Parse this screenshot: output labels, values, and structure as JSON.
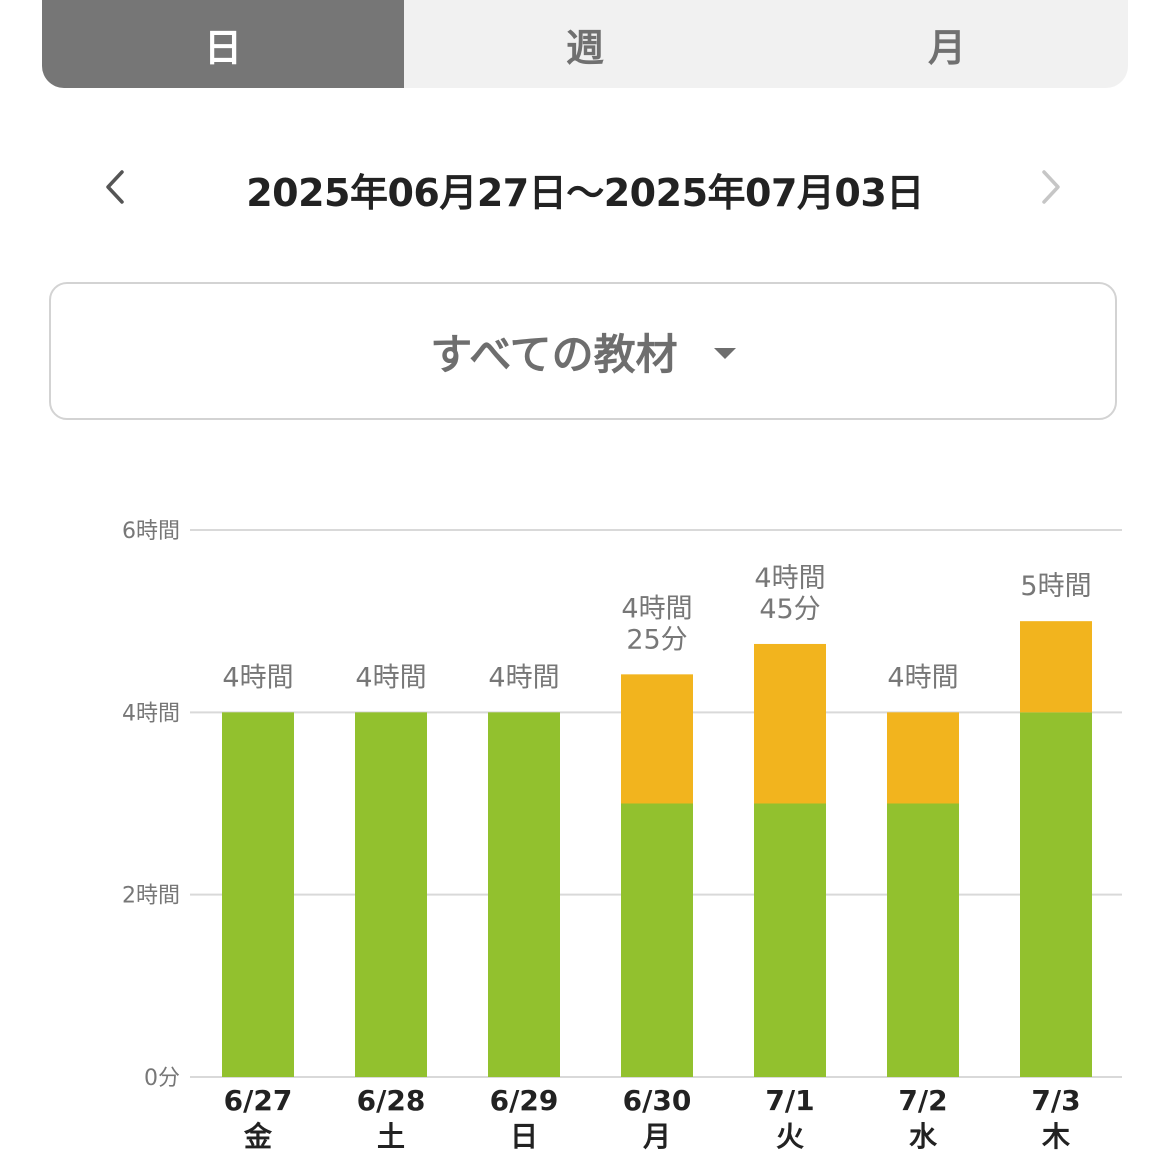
{
  "tabs": [
    {
      "label": "日",
      "active": true
    },
    {
      "label": "週",
      "active": false
    },
    {
      "label": "月",
      "active": false
    }
  ],
  "date_range": "2025年06月27日～2025年07月03日",
  "material_filter": {
    "label": "すべての教材"
  },
  "colors": {
    "green": "#92c12e",
    "orange": "#f2b41e",
    "grid": "#d9d9d9",
    "label": "#777777",
    "tick": "#222222"
  },
  "chart_data": {
    "type": "bar",
    "stacked": true,
    "categories": [
      "6/27",
      "6/28",
      "6/29",
      "6/30",
      "7/1",
      "7/2",
      "7/3"
    ],
    "weekdays": [
      "金",
      "土",
      "日",
      "月",
      "火",
      "水",
      "木"
    ],
    "series": [
      {
        "color": "#92c12e",
        "values": [
          240,
          240,
          240,
          180,
          180,
          180,
          240
        ]
      },
      {
        "color": "#f2b41e",
        "values": [
          0,
          0,
          0,
          85,
          105,
          60,
          60
        ]
      }
    ],
    "totals_labels": [
      [
        "4時間"
      ],
      [
        "4時間"
      ],
      [
        "4時間"
      ],
      [
        "4時間",
        "25分"
      ],
      [
        "4時間",
        "45分"
      ],
      [
        "4時間"
      ],
      [
        "5時間"
      ]
    ],
    "yticks": [
      {
        "value": 0,
        "label": "0分"
      },
      {
        "value": 120,
        "label": "2時間"
      },
      {
        "value": 240,
        "label": "4時間"
      },
      {
        "value": 360,
        "label": "6時間"
      }
    ],
    "ylim": [
      0,
      360
    ],
    "y_unit": "minutes",
    "grid": true
  }
}
